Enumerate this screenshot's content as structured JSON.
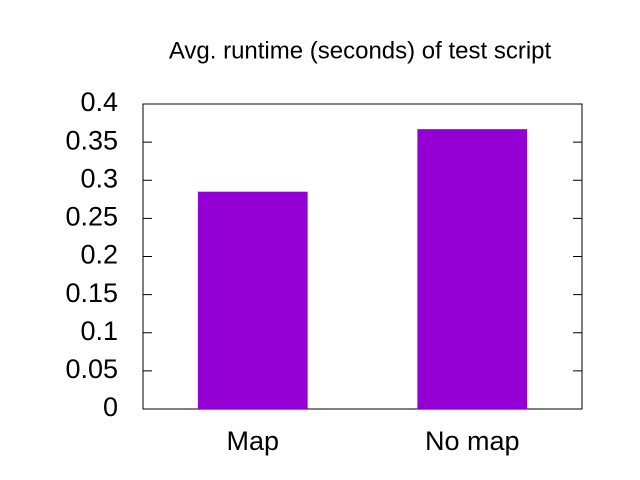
{
  "chart_data": {
    "type": "bar",
    "title": "Avg. runtime (seconds) of test script",
    "categories": [
      "Map",
      "No map"
    ],
    "values": [
      0.285,
      0.367
    ],
    "color": "#9400d3",
    "ylim": [
      0,
      0.4
    ],
    "yticks": [
      0,
      0.05,
      0.1,
      0.15,
      0.2,
      0.25,
      0.3,
      0.35,
      0.4
    ],
    "grid": false
  }
}
